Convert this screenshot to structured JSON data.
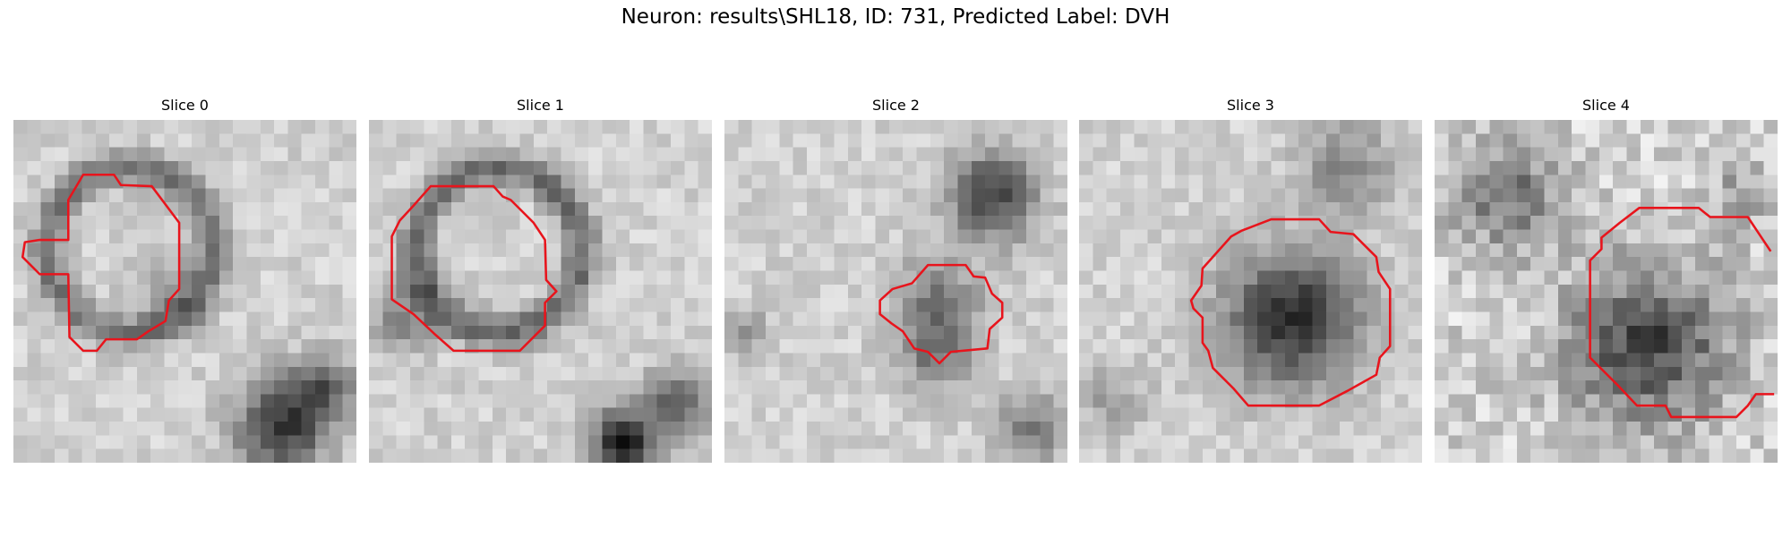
{
  "header": {
    "title": "Neuron: results\\SHL18, ID: 731, Predicted Label: DVH"
  },
  "panels": [
    {
      "title": "Slice 0"
    },
    {
      "title": "Slice 1"
    },
    {
      "title": "Slice 2"
    },
    {
      "title": "Slice 3"
    },
    {
      "title": "Slice 4"
    }
  ]
}
